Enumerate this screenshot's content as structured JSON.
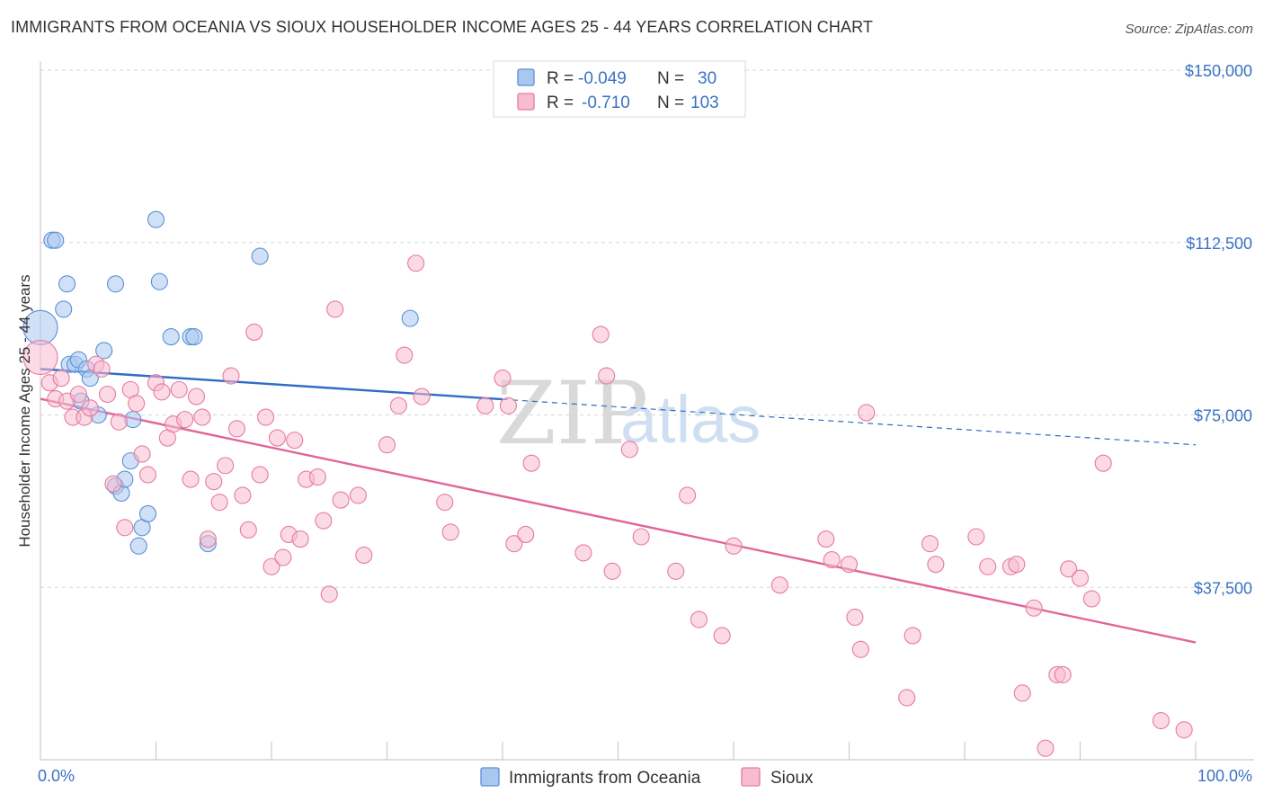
{
  "title": "IMMIGRANTS FROM OCEANIA VS SIOUX HOUSEHOLDER INCOME AGES 25 - 44 YEARS CORRELATION CHART",
  "source": "Source: ZipAtlas.com",
  "watermark": {
    "zip": "ZIP",
    "atlas": "atlas"
  },
  "legend": {
    "rows": [
      {
        "r_label": "R =",
        "r_value": "-0.049",
        "n_label": "N =",
        "n_value": "30",
        "color": "#a9c8f0",
        "stroke": "#5b8fd6"
      },
      {
        "r_label": "R =",
        "r_value": "-0.710",
        "n_label": "N =",
        "n_value": "103",
        "color": "#f7bcd0",
        "stroke": "#e57ba0"
      }
    ]
  },
  "bottom_legend": [
    {
      "label": "Immigrants from Oceania",
      "color": "#a9c8f0",
      "stroke": "#5b8fd6"
    },
    {
      "label": "Sioux",
      "color": "#f7bcd0",
      "stroke": "#e57ba0"
    }
  ],
  "chart_data": {
    "type": "scatter",
    "ylabel": "Householder Income Ages 25 - 44 years",
    "xlabel": "",
    "xlim": [
      0,
      100
    ],
    "ylim": [
      0,
      150000
    ],
    "x_tick_labels": [
      "0.0%",
      "100.0%"
    ],
    "y_ticks": [
      {
        "value": 37500,
        "label": "$37,500"
      },
      {
        "value": 75000,
        "label": "$75,000"
      },
      {
        "value": 112500,
        "label": "$112,500"
      },
      {
        "value": 150000,
        "label": "$150,000"
      }
    ],
    "grid": "horizontal dashed",
    "series": [
      {
        "name": "Immigrants from Oceania",
        "color": "#a9c8f0",
        "stroke": "#5b8fd6",
        "line_color": "#2f6cc4",
        "trend": {
          "x0": 0,
          "y0": 85000,
          "x1": 100,
          "y1": 68500,
          "solid_until": 40
        },
        "points": [
          [
            0.0,
            94000,
            1
          ],
          [
            1.0,
            113000,
            0
          ],
          [
            1.3,
            113000,
            0
          ],
          [
            2.0,
            98000,
            0
          ],
          [
            2.3,
            103500,
            0
          ],
          [
            2.5,
            86000,
            0
          ],
          [
            3.0,
            86000,
            0
          ],
          [
            3.3,
            87000,
            0
          ],
          [
            3.5,
            78000,
            0
          ],
          [
            4.0,
            85000,
            0
          ],
          [
            4.3,
            83000,
            0
          ],
          [
            5.0,
            75000,
            0
          ],
          [
            5.5,
            89000,
            0
          ],
          [
            6.5,
            103500,
            0
          ],
          [
            6.5,
            59500,
            0
          ],
          [
            7.0,
            58000,
            0
          ],
          [
            7.3,
            61000,
            0
          ],
          [
            7.8,
            65000,
            0
          ],
          [
            8.0,
            74000,
            0
          ],
          [
            8.5,
            46500,
            0
          ],
          [
            8.8,
            50500,
            0
          ],
          [
            9.3,
            53500,
            0
          ],
          [
            10.0,
            117500,
            0
          ],
          [
            10.3,
            104000,
            0
          ],
          [
            11.3,
            92000,
            0
          ],
          [
            13.0,
            92000,
            0
          ],
          [
            13.3,
            92000,
            0
          ],
          [
            14.5,
            47000,
            0
          ],
          [
            19.0,
            109500,
            0
          ],
          [
            32.0,
            96000,
            0
          ]
        ]
      },
      {
        "name": "Sioux",
        "color": "#f7bcd0",
        "stroke": "#e57ba0",
        "line_color": "#e0659a",
        "trend": {
          "x0": 0,
          "y0": 78500,
          "x1": 100,
          "y1": 25500,
          "solid_until": 100
        },
        "points": [
          [
            0.0,
            87500,
            1
          ],
          [
            0.8,
            82000,
            0
          ],
          [
            1.3,
            78500,
            0
          ],
          [
            1.8,
            83000,
            0
          ],
          [
            2.3,
            78000,
            0
          ],
          [
            2.8,
            74500,
            0
          ],
          [
            3.3,
            79500,
            0
          ],
          [
            3.8,
            74500,
            0
          ],
          [
            4.3,
            76500,
            0
          ],
          [
            4.8,
            86000,
            0
          ],
          [
            5.3,
            85000,
            0
          ],
          [
            5.8,
            79500,
            0
          ],
          [
            6.3,
            60000,
            0
          ],
          [
            6.8,
            73500,
            0
          ],
          [
            7.3,
            50500,
            0
          ],
          [
            7.8,
            80500,
            0
          ],
          [
            8.3,
            77500,
            0
          ],
          [
            8.8,
            66500,
            0
          ],
          [
            9.3,
            62000,
            0
          ],
          [
            10.0,
            82000,
            0
          ],
          [
            10.5,
            80000,
            0
          ],
          [
            11.0,
            70000,
            0
          ],
          [
            11.5,
            73000,
            0
          ],
          [
            12.0,
            80500,
            0
          ],
          [
            12.5,
            74000,
            0
          ],
          [
            13.0,
            61000,
            0
          ],
          [
            13.5,
            79000,
            0
          ],
          [
            14.0,
            74500,
            0
          ],
          [
            14.5,
            48000,
            0
          ],
          [
            15.0,
            60500,
            0
          ],
          [
            15.5,
            56000,
            0
          ],
          [
            16.0,
            64000,
            0
          ],
          [
            16.5,
            83500,
            0
          ],
          [
            17.0,
            72000,
            0
          ],
          [
            17.5,
            57500,
            0
          ],
          [
            18.0,
            50000,
            0
          ],
          [
            18.5,
            93000,
            0
          ],
          [
            19.0,
            62000,
            0
          ],
          [
            19.5,
            74500,
            0
          ],
          [
            20.0,
            42000,
            0
          ],
          [
            20.5,
            70000,
            0
          ],
          [
            21.0,
            44000,
            0
          ],
          [
            21.5,
            49000,
            0
          ],
          [
            22.0,
            69500,
            0
          ],
          [
            22.5,
            48000,
            0
          ],
          [
            23.0,
            61000,
            0
          ],
          [
            24.0,
            61500,
            0
          ],
          [
            24.5,
            52000,
            0
          ],
          [
            25.0,
            36000,
            0
          ],
          [
            25.5,
            98000,
            0
          ],
          [
            26.0,
            56500,
            0
          ],
          [
            27.5,
            57500,
            0
          ],
          [
            28.0,
            44500,
            0
          ],
          [
            30.0,
            68500,
            0
          ],
          [
            31.0,
            77000,
            0
          ],
          [
            31.5,
            88000,
            0
          ],
          [
            32.5,
            108000,
            0
          ],
          [
            33.0,
            79000,
            0
          ],
          [
            35.0,
            56000,
            0
          ],
          [
            35.5,
            49500,
            0
          ],
          [
            38.5,
            77000,
            0
          ],
          [
            40.0,
            83000,
            0
          ],
          [
            40.5,
            77000,
            0
          ],
          [
            41.0,
            47000,
            0
          ],
          [
            42.0,
            49000,
            0
          ],
          [
            42.5,
            64500,
            0
          ],
          [
            47.0,
            45000,
            0
          ],
          [
            48.5,
            92500,
            0
          ],
          [
            49.0,
            83500,
            0
          ],
          [
            49.5,
            41000,
            0
          ],
          [
            51.0,
            67500,
            0
          ],
          [
            52.0,
            48500,
            0
          ],
          [
            55.0,
            41000,
            0
          ],
          [
            56.0,
            57500,
            0
          ],
          [
            57.0,
            30500,
            0
          ],
          [
            59.0,
            27000,
            0
          ],
          [
            60.0,
            46500,
            0
          ],
          [
            64.0,
            38000,
            0
          ],
          [
            68.0,
            48000,
            0
          ],
          [
            68.5,
            43500,
            0
          ],
          [
            70.0,
            42500,
            0
          ],
          [
            70.5,
            31000,
            0
          ],
          [
            71.0,
            24000,
            0
          ],
          [
            71.5,
            75500,
            0
          ],
          [
            75.0,
            13500,
            0
          ],
          [
            75.5,
            27000,
            0
          ],
          [
            77.0,
            47000,
            0
          ],
          [
            77.5,
            42500,
            0
          ],
          [
            81.0,
            48500,
            0
          ],
          [
            82.0,
            42000,
            0
          ],
          [
            84.0,
            42000,
            0
          ],
          [
            84.5,
            42500,
            0
          ],
          [
            85.0,
            14500,
            0
          ],
          [
            86.0,
            33000,
            0
          ],
          [
            87.0,
            2500,
            0
          ],
          [
            88.0,
            18500,
            0
          ],
          [
            88.5,
            18500,
            0
          ],
          [
            89.0,
            41500,
            0
          ],
          [
            90.0,
            39500,
            0
          ],
          [
            91.0,
            35000,
            0
          ],
          [
            92.0,
            64500,
            0
          ],
          [
            97.0,
            8500,
            0
          ],
          [
            99.0,
            6500,
            0
          ]
        ]
      }
    ]
  }
}
